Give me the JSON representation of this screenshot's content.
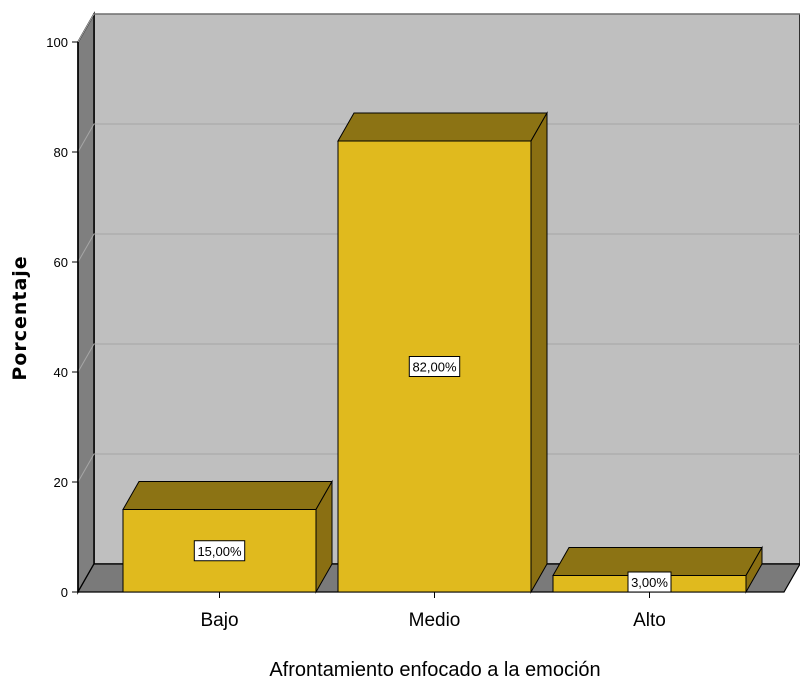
{
  "chart_data": {
    "type": "bar",
    "categories": [
      "Bajo",
      "Medio",
      "Alto"
    ],
    "values": [
      15.0,
      82.0,
      3.0
    ],
    "data_labels": [
      "15,00%",
      "82,00%",
      "3,00%"
    ],
    "xlabel": "Afrontamiento enfocado a la emoción",
    "ylabel": "Porcentaje",
    "ylim": [
      0,
      100
    ],
    "yticks": [
      "0",
      "20",
      "40",
      "60",
      "80",
      "100"
    ],
    "grid": true,
    "three_d": true,
    "colors": {
      "bar_front": "#e0ba1e",
      "bar_top": "#8c7314",
      "bar_side": "#8a6f12",
      "wall": "#bfbfbf",
      "wall_side": "#7f7f7f",
      "floor": "#7a7a7a",
      "gridline": "#a6a6a6"
    }
  }
}
